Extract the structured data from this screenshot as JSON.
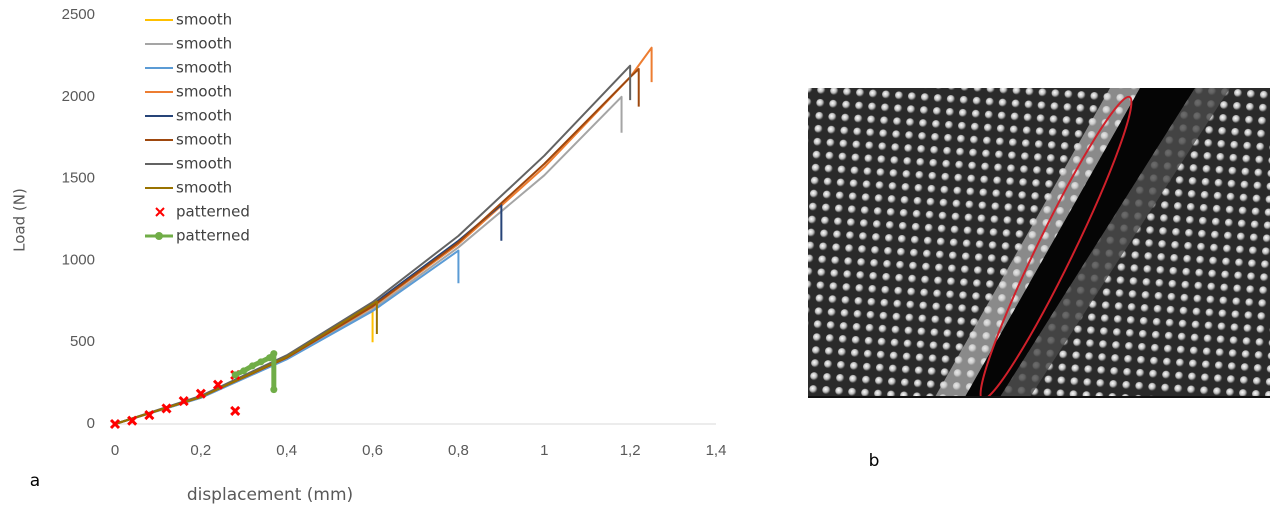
{
  "chart_data": {
    "type": "line",
    "xlabel": "displacement (mm)",
    "ylabel": "Load (N)",
    "xlim": [
      0,
      1.4
    ],
    "ylim": [
      0,
      2500
    ],
    "xticks": [
      0,
      {
        "value": 0.2,
        "label": "0,2"
      },
      {
        "value": 0.4,
        "label": "0,4"
      },
      {
        "value": 0.6,
        "label": "0,6"
      },
      {
        "value": 0.8,
        "label": "0,8"
      },
      1,
      {
        "value": 1.2,
        "label": "1,2"
      },
      {
        "value": 1.4,
        "label": "1,4"
      }
    ],
    "yticks": [
      0,
      500,
      1000,
      1500,
      2000,
      2500
    ],
    "legend": "upper left",
    "annotations": [
      "a",
      "b"
    ],
    "series": [
      {
        "name": "smooth",
        "color": "#ffc000",
        "style": "line",
        "x": [
          0,
          0.2,
          0.4,
          0.6,
          0.6
        ],
        "values": [
          0,
          165,
          410,
          725,
          500
        ]
      },
      {
        "name": "smooth",
        "color": "#a5a5a5",
        "style": "line",
        "x": [
          0,
          0.2,
          0.4,
          0.6,
          0.8,
          1.0,
          1.18,
          1.18
        ],
        "values": [
          0,
          160,
          400,
          700,
          1080,
          1520,
          2000,
          1780
        ]
      },
      {
        "name": "smooth",
        "color": "#5b9bd5",
        "style": "line",
        "x": [
          0,
          0.2,
          0.4,
          0.6,
          0.8,
          0.8
        ],
        "values": [
          0,
          160,
          395,
          690,
          1060,
          860
        ]
      },
      {
        "name": "smooth",
        "color": "#ed7d31",
        "style": "line",
        "x": [
          0,
          0.2,
          0.4,
          0.6,
          0.8,
          1.0,
          1.2,
          1.25,
          1.25
        ],
        "values": [
          0,
          165,
          405,
          715,
          1100,
          1570,
          2120,
          2300,
          2090
        ]
      },
      {
        "name": "smooth",
        "color": "#264478",
        "style": "line",
        "x": [
          0,
          0.2,
          0.4,
          0.6,
          0.8,
          0.9,
          0.9
        ],
        "values": [
          0,
          168,
          412,
          730,
          1120,
          1340,
          1120
        ]
      },
      {
        "name": "smooth",
        "color": "#9e480e",
        "style": "line",
        "x": [
          0,
          0.2,
          0.4,
          0.6,
          0.8,
          1.0,
          1.2,
          1.22,
          1.22
        ],
        "values": [
          0,
          165,
          405,
          720,
          1110,
          1590,
          2120,
          2170,
          1940
        ]
      },
      {
        "name": "smooth",
        "color": "#636363",
        "style": "line",
        "x": [
          0,
          0.2,
          0.4,
          0.6,
          0.8,
          1.0,
          1.2,
          1.2
        ],
        "values": [
          0,
          172,
          420,
          745,
          1150,
          1640,
          2190,
          1980
        ]
      },
      {
        "name": "smooth",
        "color": "#997300",
        "style": "line",
        "x": [
          0,
          0.2,
          0.4,
          0.61,
          0.61
        ],
        "values": [
          0,
          165,
          410,
          750,
          550
        ]
      },
      {
        "name": "patterned",
        "color": "#ff0000",
        "style": "x",
        "x": [
          0,
          0.04,
          0.08,
          0.12,
          0.16,
          0.2,
          0.24,
          0.28,
          0.28
        ],
        "values": [
          0,
          20,
          55,
          95,
          140,
          185,
          240,
          300,
          80
        ]
      },
      {
        "name": "patterned",
        "color": "#70ad47",
        "style": "line-o",
        "x": [
          0.28,
          0.3,
          0.32,
          0.34,
          0.36,
          0.37,
          0.37
        ],
        "values": [
          300,
          325,
          355,
          380,
          405,
          430,
          210
        ]
      }
    ]
  }
}
